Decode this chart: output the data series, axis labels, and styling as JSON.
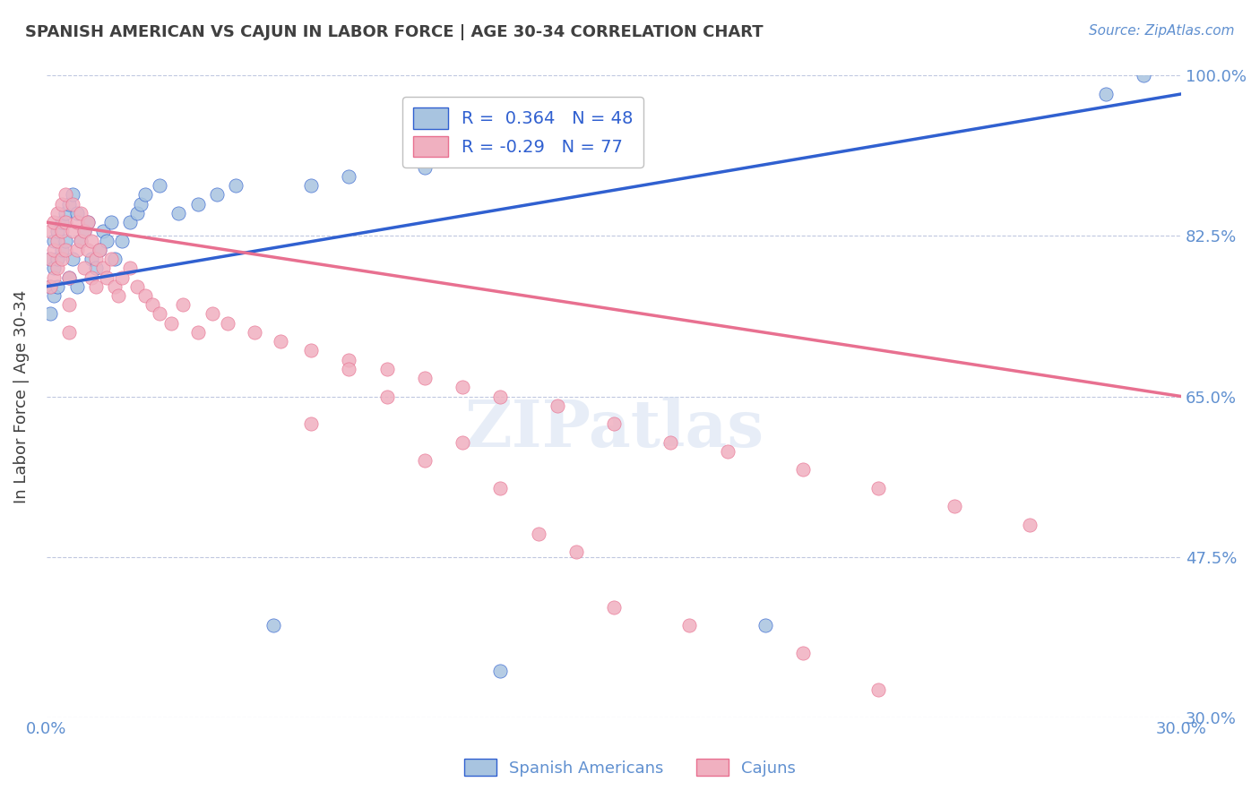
{
  "title": "SPANISH AMERICAN VS CAJUN IN LABOR FORCE | AGE 30-34 CORRELATION CHART",
  "source_text": "Source: ZipAtlas.com",
  "xlabel": "",
  "ylabel": "In Labor Force | Age 30-34",
  "xlim": [
    0.0,
    0.3
  ],
  "ylim": [
    0.3,
    1.0
  ],
  "xticks": [
    0.0,
    0.05,
    0.1,
    0.15,
    0.2,
    0.25,
    0.3
  ],
  "xticklabels": [
    "0.0%",
    "",
    "",
    "",
    "",
    "",
    "30.0%"
  ],
  "yticks": [
    0.3,
    0.475,
    0.65,
    0.825,
    1.0
  ],
  "yticklabels": [
    "30.0%",
    "47.5%",
    "65.0%",
    "82.5%",
    "100.0%"
  ],
  "blue_R": 0.364,
  "blue_N": 48,
  "pink_R": -0.29,
  "pink_N": 77,
  "blue_color": "#a8c4e0",
  "pink_color": "#f0b0c0",
  "blue_line_color": "#3060d0",
  "pink_line_color": "#e87090",
  "legend_R_color": "#3060d0",
  "title_color": "#404040",
  "axis_color": "#6090d0",
  "watermark": "ZIPatlas",
  "blue_scatter_x": [
    0.001,
    0.001,
    0.001,
    0.002,
    0.002,
    0.002,
    0.003,
    0.003,
    0.003,
    0.004,
    0.004,
    0.005,
    0.005,
    0.006,
    0.006,
    0.007,
    0.007,
    0.008,
    0.008,
    0.009,
    0.01,
    0.011,
    0.012,
    0.013,
    0.014,
    0.015,
    0.016,
    0.017,
    0.018,
    0.02,
    0.022,
    0.024,
    0.025,
    0.026,
    0.03,
    0.035,
    0.04,
    0.045,
    0.05,
    0.06,
    0.07,
    0.08,
    0.1,
    0.12,
    0.15,
    0.19,
    0.28,
    0.29
  ],
  "blue_scatter_y": [
    0.8,
    0.77,
    0.74,
    0.82,
    0.79,
    0.76,
    0.83,
    0.8,
    0.77,
    0.84,
    0.81,
    0.85,
    0.82,
    0.86,
    0.78,
    0.87,
    0.8,
    0.85,
    0.77,
    0.82,
    0.83,
    0.84,
    0.8,
    0.79,
    0.81,
    0.83,
    0.82,
    0.84,
    0.8,
    0.82,
    0.84,
    0.85,
    0.86,
    0.87,
    0.88,
    0.85,
    0.86,
    0.87,
    0.88,
    0.4,
    0.88,
    0.89,
    0.9,
    0.35,
    0.91,
    0.4,
    0.98,
    1.0
  ],
  "pink_scatter_x": [
    0.001,
    0.001,
    0.001,
    0.002,
    0.002,
    0.002,
    0.003,
    0.003,
    0.003,
    0.004,
    0.004,
    0.004,
    0.005,
    0.005,
    0.005,
    0.006,
    0.006,
    0.006,
    0.007,
    0.007,
    0.008,
    0.008,
    0.009,
    0.009,
    0.01,
    0.01,
    0.011,
    0.011,
    0.012,
    0.012,
    0.013,
    0.013,
    0.014,
    0.015,
    0.016,
    0.017,
    0.018,
    0.019,
    0.02,
    0.022,
    0.024,
    0.026,
    0.028,
    0.03,
    0.033,
    0.036,
    0.04,
    0.044,
    0.048,
    0.055,
    0.062,
    0.07,
    0.08,
    0.09,
    0.1,
    0.11,
    0.12,
    0.135,
    0.15,
    0.165,
    0.18,
    0.2,
    0.22,
    0.24,
    0.26,
    0.15,
    0.17,
    0.13,
    0.14,
    0.11,
    0.12,
    0.09,
    0.1,
    0.08,
    0.07,
    0.2,
    0.22
  ],
  "pink_scatter_y": [
    0.83,
    0.8,
    0.77,
    0.84,
    0.81,
    0.78,
    0.85,
    0.82,
    0.79,
    0.86,
    0.83,
    0.8,
    0.87,
    0.84,
    0.81,
    0.78,
    0.75,
    0.72,
    0.86,
    0.83,
    0.84,
    0.81,
    0.85,
    0.82,
    0.83,
    0.79,
    0.84,
    0.81,
    0.82,
    0.78,
    0.8,
    0.77,
    0.81,
    0.79,
    0.78,
    0.8,
    0.77,
    0.76,
    0.78,
    0.79,
    0.77,
    0.76,
    0.75,
    0.74,
    0.73,
    0.75,
    0.72,
    0.74,
    0.73,
    0.72,
    0.71,
    0.7,
    0.69,
    0.68,
    0.67,
    0.66,
    0.65,
    0.64,
    0.62,
    0.6,
    0.59,
    0.57,
    0.55,
    0.53,
    0.51,
    0.42,
    0.4,
    0.5,
    0.48,
    0.6,
    0.55,
    0.65,
    0.58,
    0.68,
    0.62,
    0.37,
    0.33
  ]
}
